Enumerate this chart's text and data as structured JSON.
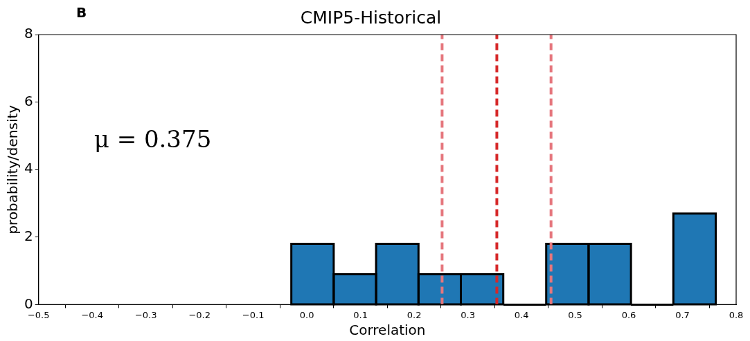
{
  "chart_data": {
    "type": "histogram",
    "title": "CMIP5-Historical",
    "xlabel": "Correlation",
    "ylabel": "probability/density",
    "annotations": [
      "B",
      "μ = 0.375"
    ],
    "bins": [
      -0.029,
      0.05,
      0.129,
      0.208,
      0.287,
      0.366,
      0.446,
      0.525,
      0.604,
      0.683,
      0.762
    ],
    "values": [
      1.8,
      0.9,
      1.8,
      0.9,
      0.9,
      0,
      1.8,
      1.8,
      0,
      2.7
    ],
    "color": "#1f77b4",
    "xlim": [
      -0.5,
      0.8
    ],
    "xticks": [
      {
        "value": -0.5,
        "label": "−0.5"
      },
      {
        "value": -0.4,
        "label": "−0.4"
      },
      {
        "value": -0.3,
        "label": "−0.3"
      },
      {
        "value": -0.2,
        "label": "−0.2"
      },
      {
        "value": -0.1,
        "label": "−0.1"
      },
      {
        "value": 0,
        "label": "0.0"
      },
      0.1,
      0.2,
      0.3,
      0.4,
      0.5,
      0.6,
      0.7,
      0.8
    ],
    "ylim": [
      0,
      8
    ],
    "yticks": [
      0,
      2,
      4,
      6,
      8
    ],
    "ref_lines": [
      {
        "axis": "x",
        "value": 0.252,
        "color": "#e5767d",
        "line_style": "dashed"
      },
      {
        "axis": "x",
        "value": 0.354,
        "color": "#d62728",
        "line_style": "dashed"
      },
      {
        "axis": "x",
        "value": 0.455,
        "color": "#e5767d",
        "line_style": "dashed"
      }
    ],
    "grid": false,
    "legend": false
  }
}
